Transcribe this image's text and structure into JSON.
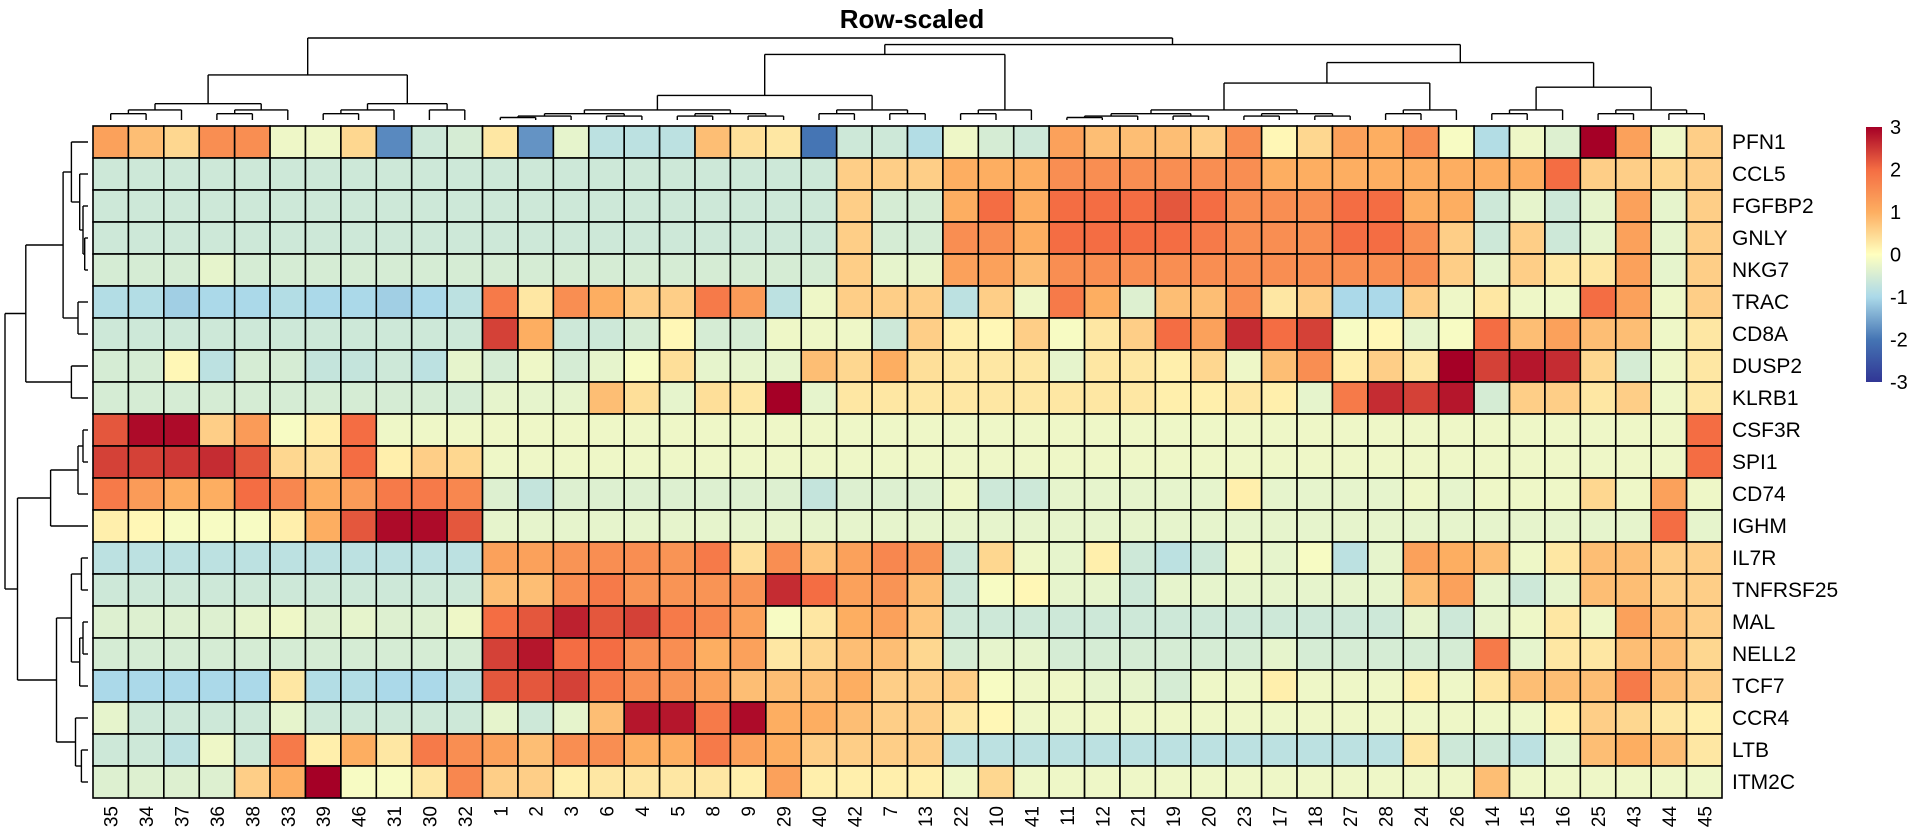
{
  "chart_data": {
    "type": "heatmap",
    "title": "Row-scaled",
    "rows": [
      "PFN1",
      "CCL5",
      "FGFBP2",
      "GNLY",
      "NKG7",
      "TRAC",
      "CD8A",
      "DUSP2",
      "KLRB1",
      "CSF3R",
      "SPI1",
      "CD74",
      "IGHM",
      "IL7R",
      "TNFRSF25",
      "MAL",
      "NELL2",
      "TCF7",
      "CCR4",
      "LTB",
      "ITM2C"
    ],
    "columns": [
      "35",
      "34",
      "37",
      "36",
      "38",
      "33",
      "39",
      "46",
      "31",
      "30",
      "32",
      "1",
      "2",
      "3",
      "6",
      "4",
      "5",
      "8",
      "9",
      "29",
      "40",
      "42",
      "7",
      "13",
      "22",
      "10",
      "41",
      "11",
      "12",
      "21",
      "19",
      "20",
      "23",
      "17",
      "18",
      "27",
      "28",
      "24",
      "26",
      "14",
      "15",
      "16",
      "25",
      "43",
      "44",
      "45"
    ],
    "values": [
      [
        1.2,
        0.8,
        0.5,
        1.5,
        1.5,
        -0.2,
        -0.2,
        0.5,
        -1.8,
        -0.6,
        -0.5,
        0.3,
        -1.7,
        -0.3,
        -0.8,
        -0.8,
        -0.8,
        0.8,
        0.4,
        0.3,
        -2.0,
        -0.6,
        -0.6,
        -0.9,
        -0.2,
        -0.5,
        -0.6,
        1.2,
        0.8,
        0.8,
        0.8,
        0.6,
        1.5,
        0.1,
        0.5,
        1.2,
        1.0,
        1.5,
        -0.1,
        -0.9,
        -0.2,
        -0.4,
        3.0,
        1.2,
        -0.2,
        0.6
      ],
      [
        -0.6,
        -0.6,
        -0.6,
        -0.6,
        -0.6,
        -0.6,
        -0.6,
        -0.6,
        -0.6,
        -0.6,
        -0.6,
        -0.6,
        -0.6,
        -0.6,
        -0.6,
        -0.6,
        -0.6,
        -0.6,
        -0.6,
        -0.6,
        -0.6,
        0.6,
        0.6,
        0.6,
        1.0,
        1.0,
        1.0,
        1.5,
        1.5,
        1.5,
        1.5,
        1.5,
        1.5,
        1.0,
        1.0,
        1.0,
        1.0,
        1.0,
        1.0,
        1.0,
        1.0,
        2.0,
        0.6,
        0.6,
        0.5,
        0.6
      ],
      [
        -0.6,
        -0.6,
        -0.6,
        -0.6,
        -0.6,
        -0.6,
        -0.6,
        -0.6,
        -0.6,
        -0.6,
        -0.6,
        -0.6,
        -0.6,
        -0.6,
        -0.6,
        -0.6,
        -0.6,
        -0.6,
        -0.6,
        -0.6,
        -0.6,
        0.6,
        -0.5,
        -0.5,
        1.0,
        2.0,
        1.0,
        2.0,
        2.0,
        2.0,
        2.2,
        2.0,
        1.5,
        1.5,
        1.5,
        2.0,
        2.0,
        1.0,
        1.0,
        -0.6,
        -0.3,
        -0.6,
        -0.3,
        1.2,
        -0.3,
        0.6
      ],
      [
        -0.6,
        -0.6,
        -0.6,
        -0.6,
        -0.6,
        -0.6,
        -0.6,
        -0.6,
        -0.6,
        -0.6,
        -0.6,
        -0.6,
        -0.6,
        -0.6,
        -0.6,
        -0.6,
        -0.6,
        -0.6,
        -0.6,
        -0.6,
        -0.6,
        0.6,
        -0.5,
        -0.5,
        1.5,
        1.5,
        1.0,
        2.0,
        2.0,
        2.0,
        2.0,
        1.8,
        1.5,
        1.5,
        1.5,
        2.0,
        2.0,
        1.5,
        0.6,
        -0.6,
        0.6,
        -0.6,
        -0.3,
        1.2,
        -0.3,
        0.6
      ],
      [
        -0.5,
        -0.5,
        -0.5,
        -0.3,
        -0.5,
        -0.5,
        -0.5,
        -0.5,
        -0.5,
        -0.5,
        -0.5,
        -0.5,
        -0.5,
        -0.5,
        -0.5,
        -0.5,
        -0.5,
        -0.5,
        -0.5,
        -0.5,
        -0.5,
        0.6,
        -0.3,
        -0.3,
        1.2,
        1.2,
        0.8,
        1.5,
        1.5,
        1.5,
        1.5,
        1.5,
        1.5,
        1.5,
        1.5,
        1.5,
        1.5,
        1.5,
        0.6,
        -0.3,
        0.6,
        0.3,
        0.3,
        1.2,
        -0.3,
        0.6
      ],
      [
        -0.9,
        -0.9,
        -1.1,
        -1.0,
        -1.0,
        -0.9,
        -1.0,
        -1.0,
        -1.1,
        -1.0,
        -0.8,
        1.8,
        0.3,
        1.5,
        1.0,
        0.6,
        0.6,
        1.8,
        1.3,
        -0.8,
        -0.2,
        0.6,
        0.6,
        0.6,
        -0.8,
        0.6,
        -0.2,
        1.8,
        1.0,
        -0.4,
        0.8,
        0.8,
        1.5,
        0.3,
        0.6,
        -1.0,
        -1.0,
        0.6,
        -0.2,
        0.3,
        -0.2,
        -0.2,
        2.0,
        1.2,
        -0.2,
        0.6
      ],
      [
        -0.6,
        -0.6,
        -0.6,
        -0.6,
        -0.6,
        -0.6,
        -0.6,
        -0.6,
        -0.6,
        -0.6,
        -0.6,
        2.4,
        1.0,
        -0.6,
        -0.6,
        -0.5,
        0.1,
        -0.5,
        -0.5,
        -0.2,
        -0.2,
        -0.2,
        -0.6,
        0.6,
        0.2,
        0.1,
        0.6,
        -0.1,
        0.3,
        0.6,
        2.0,
        1.2,
        2.6,
        2.0,
        2.4,
        -0.1,
        0.1,
        -0.3,
        -0.1,
        2.0,
        0.8,
        1.2,
        0.8,
        0.8,
        -0.2,
        0.3
      ],
      [
        -0.5,
        -0.5,
        0.1,
        -0.8,
        -0.5,
        -0.5,
        -0.7,
        -0.7,
        -0.6,
        -0.8,
        -0.3,
        -0.5,
        -0.2,
        -0.5,
        -0.3,
        -0.1,
        0.4,
        -0.3,
        -0.3,
        -0.3,
        0.8,
        0.5,
        1.0,
        0.4,
        0.3,
        0.3,
        0.3,
        -0.3,
        0.3,
        0.3,
        0.2,
        0.5,
        -0.2,
        0.8,
        1.5,
        0.2,
        0.6,
        0.3,
        3.0,
        2.4,
        2.8,
        2.6,
        0.5,
        -0.5,
        -0.2,
        0.3
      ],
      [
        -0.5,
        -0.5,
        -0.5,
        -0.5,
        -0.5,
        -0.5,
        -0.5,
        -0.5,
        -0.5,
        -0.5,
        -0.5,
        -0.3,
        -0.3,
        -0.3,
        0.8,
        0.4,
        -0.3,
        0.4,
        0.3,
        3.0,
        -0.3,
        0.3,
        0.3,
        0.3,
        0.3,
        0.3,
        0.3,
        0.3,
        0.3,
        0.3,
        0.2,
        0.2,
        0.3,
        0.2,
        -0.3,
        1.8,
        2.6,
        2.4,
        2.8,
        -0.5,
        0.6,
        0.6,
        0.3,
        0.6,
        -0.2,
        0.3
      ],
      [
        2.2,
        2.9,
        2.9,
        0.6,
        1.3,
        -0.1,
        0.2,
        2.0,
        -0.2,
        -0.2,
        -0.2,
        -0.2,
        -0.2,
        -0.2,
        -0.2,
        -0.2,
        -0.2,
        -0.2,
        -0.2,
        -0.2,
        -0.2,
        -0.2,
        -0.2,
        -0.2,
        -0.2,
        -0.2,
        -0.2,
        -0.2,
        -0.2,
        -0.2,
        -0.2,
        -0.2,
        -0.2,
        -0.2,
        -0.2,
        -0.2,
        -0.2,
        -0.2,
        -0.2,
        -0.2,
        -0.2,
        -0.2,
        -0.2,
        -0.2,
        -0.2,
        2.0
      ],
      [
        2.4,
        2.4,
        2.5,
        2.6,
        2.2,
        0.5,
        0.4,
        2.0,
        0.2,
        0.6,
        0.5,
        -0.2,
        -0.2,
        -0.2,
        -0.2,
        -0.2,
        -0.2,
        -0.2,
        -0.2,
        -0.2,
        -0.2,
        -0.2,
        -0.2,
        -0.2,
        -0.2,
        -0.2,
        -0.2,
        -0.2,
        -0.2,
        -0.2,
        -0.2,
        -0.2,
        -0.2,
        -0.2,
        -0.2,
        -0.2,
        -0.2,
        -0.2,
        -0.2,
        -0.2,
        -0.2,
        -0.2,
        -0.2,
        -0.2,
        -0.2,
        2.0
      ],
      [
        1.8,
        1.3,
        1.0,
        1.0,
        2.0,
        1.6,
        1.0,
        1.3,
        1.8,
        1.8,
        1.6,
        -0.4,
        -0.7,
        -0.4,
        -0.4,
        -0.4,
        -0.4,
        -0.4,
        -0.4,
        -0.4,
        -0.7,
        -0.4,
        -0.4,
        -0.4,
        -0.2,
        -0.6,
        -0.6,
        -0.3,
        -0.3,
        -0.3,
        -0.3,
        -0.3,
        0.2,
        -0.3,
        -0.3,
        -0.3,
        -0.3,
        -0.2,
        -0.3,
        -0.2,
        -0.2,
        -0.2,
        0.5,
        -0.2,
        1.2,
        -0.2
      ],
      [
        0.2,
        0.1,
        -0.1,
        -0.1,
        -0.1,
        0.2,
        1.0,
        2.2,
        2.9,
        2.9,
        2.2,
        -0.3,
        -0.3,
        -0.3,
        -0.3,
        -0.3,
        -0.3,
        -0.3,
        -0.3,
        -0.3,
        -0.3,
        -0.3,
        -0.3,
        -0.3,
        -0.3,
        -0.3,
        -0.3,
        -0.3,
        -0.3,
        -0.3,
        -0.3,
        -0.3,
        -0.3,
        -0.3,
        -0.3,
        -0.3,
        -0.3,
        -0.3,
        -0.3,
        -0.3,
        -0.3,
        -0.3,
        -0.3,
        -0.3,
        2.0,
        -0.3
      ],
      [
        -0.8,
        -0.8,
        -0.8,
        -0.8,
        -0.8,
        -0.8,
        -0.8,
        -0.8,
        -0.8,
        -0.8,
        -0.8,
        1.2,
        1.2,
        1.4,
        1.5,
        1.5,
        1.4,
        1.8,
        0.4,
        1.5,
        0.7,
        1.2,
        1.6,
        1.4,
        -0.6,
        0.5,
        -0.2,
        -0.3,
        0.2,
        -0.6,
        -0.8,
        -0.6,
        -0.2,
        -0.3,
        -0.1,
        -0.8,
        -0.3,
        1.2,
        1.0,
        0.8,
        -0.2,
        0.3,
        0.8,
        0.8,
        0.6,
        0.6
      ],
      [
        -0.6,
        -0.6,
        -0.6,
        -0.6,
        -0.6,
        -0.6,
        -0.6,
        -0.6,
        -0.6,
        -0.6,
        -0.6,
        0.8,
        0.8,
        1.5,
        1.8,
        1.4,
        1.4,
        1.4,
        1.4,
        2.6,
        2.0,
        1.2,
        1.4,
        0.8,
        -0.6,
        -0.1,
        0.1,
        -0.3,
        -0.3,
        -0.6,
        -0.3,
        -0.3,
        -0.3,
        -0.3,
        -0.3,
        -0.3,
        -0.3,
        0.8,
        1.2,
        -0.3,
        -0.6,
        -0.3,
        0.8,
        0.8,
        0.6,
        0.6
      ],
      [
        -0.4,
        -0.4,
        -0.4,
        -0.4,
        -0.3,
        -0.2,
        -0.4,
        -0.3,
        -0.4,
        -0.4,
        -0.2,
        2.0,
        2.2,
        2.7,
        2.2,
        2.4,
        1.8,
        1.6,
        1.2,
        -0.1,
        0.3,
        1.0,
        1.2,
        0.7,
        -0.6,
        -0.6,
        -0.6,
        -0.6,
        -0.6,
        -0.6,
        -0.6,
        -0.6,
        -0.6,
        -0.6,
        -0.6,
        -0.6,
        -0.6,
        -0.3,
        -0.6,
        -0.3,
        -0.2,
        0.3,
        -0.2,
        1.2,
        0.8,
        0.6
      ],
      [
        -0.5,
        -0.5,
        -0.5,
        -0.5,
        -0.5,
        -0.5,
        -0.5,
        -0.5,
        -0.5,
        -0.5,
        -0.5,
        2.4,
        2.8,
        2.0,
        2.0,
        1.5,
        1.5,
        1.0,
        1.2,
        0.3,
        0.5,
        0.8,
        0.8,
        0.5,
        -0.5,
        -0.3,
        -0.3,
        -0.5,
        -0.5,
        -0.5,
        -0.5,
        -0.5,
        -0.5,
        -0.3,
        -0.5,
        -0.5,
        -0.5,
        -0.5,
        -0.5,
        1.8,
        -0.3,
        0.3,
        0.3,
        0.8,
        0.8,
        0.5
      ],
      [
        -1.0,
        -1.0,
        -1.0,
        -1.0,
        -1.0,
        0.3,
        -0.9,
        -0.9,
        -1.0,
        -1.0,
        -0.8,
        2.2,
        2.2,
        2.4,
        1.8,
        1.5,
        1.4,
        1.2,
        0.8,
        0.8,
        0.8,
        1.0,
        0.6,
        0.6,
        0.6,
        -0.1,
        -0.2,
        -0.2,
        -0.3,
        -0.3,
        -0.5,
        -0.2,
        -0.2,
        0.2,
        -0.2,
        -0.2,
        -0.2,
        0.2,
        -0.2,
        0.3,
        0.8,
        0.8,
        0.8,
        1.8,
        0.8,
        0.6
      ],
      [
        -0.3,
        -0.6,
        -0.6,
        -0.6,
        -0.6,
        -0.3,
        -0.6,
        -0.6,
        -0.6,
        -0.6,
        -0.6,
        -0.3,
        -0.6,
        -0.3,
        0.8,
        2.8,
        2.8,
        1.8,
        2.9,
        1.0,
        1.0,
        0.8,
        0.6,
        0.6,
        0.3,
        0.1,
        -0.2,
        -0.2,
        -0.2,
        -0.2,
        -0.2,
        -0.2,
        -0.2,
        -0.2,
        -0.2,
        -0.2,
        -0.2,
        -0.2,
        -0.2,
        -0.2,
        -0.2,
        0.2,
        0.6,
        0.5,
        0.3,
        0.2
      ],
      [
        -0.6,
        -0.6,
        -0.8,
        -0.2,
        -0.6,
        1.8,
        0.2,
        1.0,
        0.3,
        1.8,
        1.5,
        1.2,
        0.8,
        1.5,
        1.5,
        1.0,
        1.0,
        1.8,
        1.2,
        1.0,
        0.6,
        0.6,
        0.6,
        0.6,
        -0.8,
        -0.8,
        -0.8,
        -0.8,
        -0.8,
        -0.8,
        -0.8,
        -0.8,
        -0.8,
        -0.8,
        -0.8,
        -0.8,
        -0.8,
        0.3,
        -0.6,
        -0.6,
        -0.8,
        -0.3,
        0.8,
        1.0,
        0.8,
        0.3
      ],
      [
        -0.4,
        -0.4,
        -0.4,
        -0.4,
        0.6,
        1.0,
        3.0,
        -0.1,
        -0.1,
        0.3,
        1.6,
        0.6,
        0.6,
        0.2,
        0.3,
        0.3,
        0.3,
        0.3,
        0.2,
        1.2,
        0.2,
        0.2,
        0.2,
        0.2,
        -0.2,
        0.5,
        -0.2,
        -0.2,
        -0.2,
        -0.2,
        -0.2,
        -0.2,
        -0.2,
        -0.2,
        -0.2,
        -0.2,
        -0.2,
        -0.2,
        -0.2,
        0.8,
        -0.2,
        -0.2,
        -0.2,
        -0.2,
        -0.2,
        -0.2
      ]
    ],
    "color_scale": {
      "min": -3,
      "max": 3,
      "stops": [
        {
          "v": -3,
          "c": "#313695"
        },
        {
          "v": -2,
          "c": "#4575b4"
        },
        {
          "v": -1,
          "c": "#abd9e9"
        },
        {
          "v": 0,
          "c": "#ffffbf"
        },
        {
          "v": 1,
          "c": "#fdae61"
        },
        {
          "v": 2,
          "c": "#f46d43"
        },
        {
          "v": 3,
          "c": "#a50026"
        }
      ]
    },
    "legend_ticks": [
      "3",
      "2",
      "1",
      "0",
      "-1",
      "-2",
      "-3"
    ],
    "row_dendrogram": true,
    "column_dendrogram": true
  }
}
